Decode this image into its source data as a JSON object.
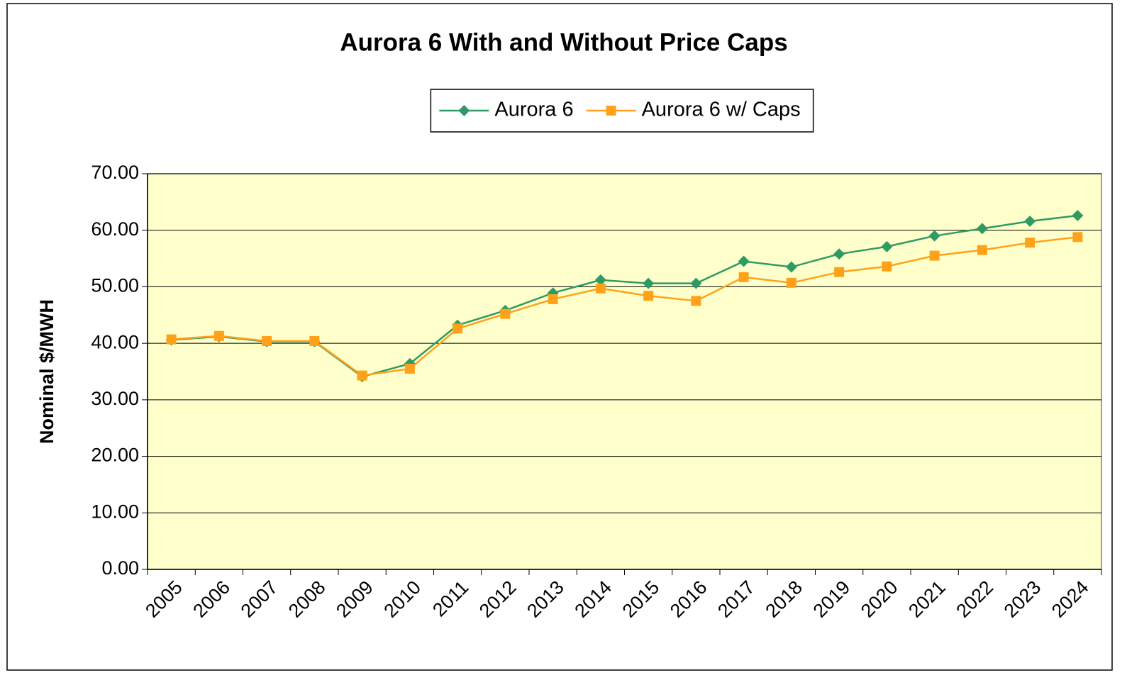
{
  "chart_data": {
    "type": "line",
    "title": "Aurora 6 With and Without Price Caps",
    "y_label": "Nominal $/MWH",
    "categories": [
      "2005",
      "2006",
      "2007",
      "2008",
      "2009",
      "2010",
      "2011",
      "2012",
      "2013",
      "2014",
      "2015",
      "2016",
      "2017",
      "2018",
      "2019",
      "2020",
      "2021",
      "2022",
      "2023",
      "2024"
    ],
    "series": [
      {
        "name": "Aurora 6",
        "color": "#2e9b63",
        "marker": "diamond",
        "values": [
          40.6,
          41.2,
          40.3,
          40.3,
          34.1,
          36.4,
          43.2,
          45.8,
          48.9,
          51.2,
          50.6,
          50.6,
          54.5,
          53.5,
          55.8,
          57.1,
          59.0,
          60.3,
          61.6,
          62.6
        ]
      },
      {
        "name": "Aurora 6 w/ Caps",
        "color": "#ffa21a",
        "marker": "square",
        "values": [
          40.7,
          41.3,
          40.4,
          40.4,
          34.3,
          35.5,
          42.6,
          45.2,
          47.8,
          49.7,
          48.4,
          47.5,
          51.7,
          50.7,
          52.6,
          53.6,
          55.5,
          56.5,
          57.8,
          58.8
        ]
      }
    ],
    "ylim": [
      0,
      70
    ],
    "yticks": [
      {
        "value": 0,
        "label": "0.00"
      },
      {
        "value": 10,
        "label": "10.00"
      },
      {
        "value": 20,
        "label": "20.00"
      },
      {
        "value": 30,
        "label": "30.00"
      },
      {
        "value": 40,
        "label": "40.00"
      },
      {
        "value": 50,
        "label": "50.00"
      },
      {
        "value": 60,
        "label": "60.00"
      },
      {
        "value": 70,
        "label": "70.00"
      }
    ],
    "grid": true,
    "plot_background": "#ffffcc",
    "legend": "top"
  }
}
